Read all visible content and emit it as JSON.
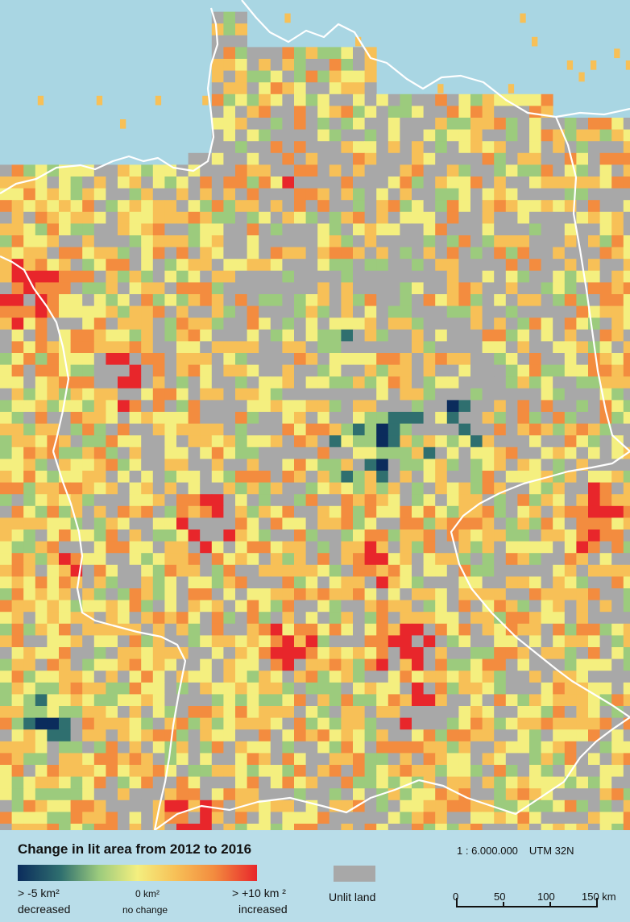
{
  "legend": {
    "title": "Change in lit area from 2012 to 2016",
    "ramp_colors": [
      "#0b2c5c",
      "#2f6f6f",
      "#9ccb7d",
      "#f4ef7f",
      "#f7c057",
      "#f38c3f",
      "#e8262b"
    ],
    "min_label": "> -5 km²",
    "min_desc": "decreased",
    "mid_label": "0 km²",
    "mid_desc": "no change",
    "max_label": "> +10 km ²",
    "max_desc": "increased",
    "unlit_label": "Unlit land",
    "unlit_color": "#a8a8a8"
  },
  "scale": {
    "ratio": "1 : 6.000.000",
    "projection": "UTM 32N",
    "ticks": [
      "0",
      "50",
      "100",
      "150 km"
    ]
  },
  "colors": {
    "water": "#a9d6e3",
    "border": "#ffffff"
  }
}
